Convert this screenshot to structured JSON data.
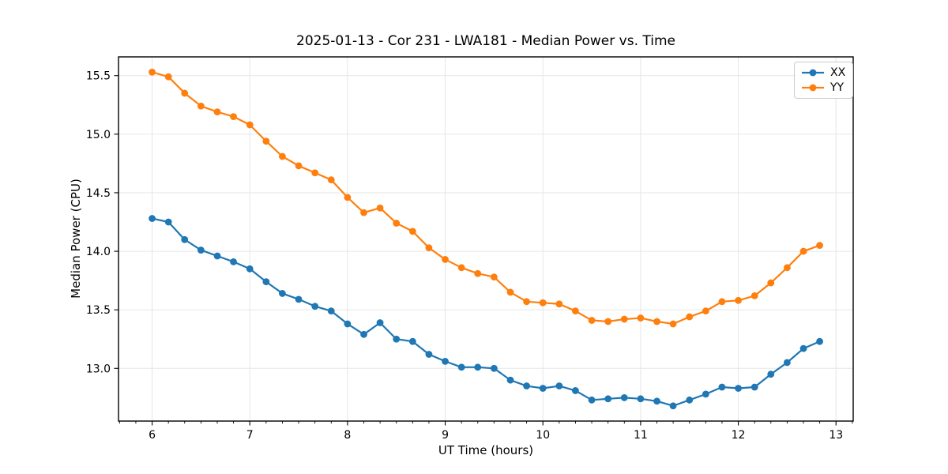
{
  "chart_data": {
    "type": "line",
    "title": "2025-01-13 - Cor 231 - LWA181 - Median Power vs. Time",
    "xlabel": "UT Time (hours)",
    "ylabel": "Median Power (CPU)",
    "x": [
      6.0,
      6.167,
      6.333,
      6.5,
      6.667,
      6.833,
      7.0,
      7.167,
      7.333,
      7.5,
      7.667,
      7.833,
      8.0,
      8.167,
      8.333,
      8.5,
      8.667,
      8.833,
      9.0,
      9.167,
      9.333,
      9.5,
      9.667,
      9.833,
      10.0,
      10.167,
      10.333,
      10.5,
      10.667,
      10.833,
      11.0,
      11.167,
      11.333,
      11.5,
      11.667,
      11.833,
      12.0,
      12.167,
      12.333,
      12.5,
      12.667,
      12.833
    ],
    "series": [
      {
        "name": "XX",
        "color": "#1f77b4",
        "values": [
          14.28,
          14.25,
          14.1,
          14.01,
          13.96,
          13.91,
          13.85,
          13.74,
          13.64,
          13.59,
          13.53,
          13.49,
          13.38,
          13.29,
          13.39,
          13.25,
          13.23,
          13.12,
          13.06,
          13.01,
          13.01,
          13.0,
          12.9,
          12.85,
          12.83,
          12.85,
          12.81,
          12.73,
          12.74,
          12.75,
          12.74,
          12.72,
          12.68,
          12.73,
          12.78,
          12.84,
          12.83,
          12.84,
          12.95,
          13.05,
          13.17,
          13.23
        ]
      },
      {
        "name": "YY",
        "color": "#ff7f0e",
        "values": [
          15.53,
          15.49,
          15.35,
          15.24,
          15.19,
          15.15,
          15.08,
          14.94,
          14.81,
          14.73,
          14.67,
          14.61,
          14.46,
          14.33,
          14.37,
          14.24,
          14.17,
          14.03,
          13.93,
          13.86,
          13.81,
          13.78,
          13.65,
          13.57,
          13.56,
          13.55,
          13.49,
          13.41,
          13.4,
          13.42,
          13.43,
          13.4,
          13.38,
          13.44,
          13.49,
          13.57,
          13.58,
          13.62,
          13.73,
          13.86,
          14.0,
          14.05
        ]
      }
    ],
    "x_ticks": {
      "values": [
        6,
        7,
        8,
        9,
        10,
        11,
        12,
        13
      ],
      "labels": [
        "6",
        "7",
        "8",
        "9",
        "10",
        "11",
        "12",
        "13"
      ]
    },
    "y_ticks": {
      "values": [
        13.0,
        13.5,
        14.0,
        14.5,
        15.0,
        15.5
      ],
      "labels": [
        "13.0",
        "13.5",
        "14.0",
        "14.5",
        "15.0",
        "15.5"
      ]
    },
    "xlim": [
      5.656,
      13.176
    ],
    "ylim": [
      12.55,
      15.66
    ],
    "x_minor_tick_interval": 0.1667,
    "grid": true,
    "legend_position": "upper right",
    "colors": {
      "grid": "#e6e6e6",
      "axes": "#000000",
      "background": "#ffffff"
    }
  }
}
